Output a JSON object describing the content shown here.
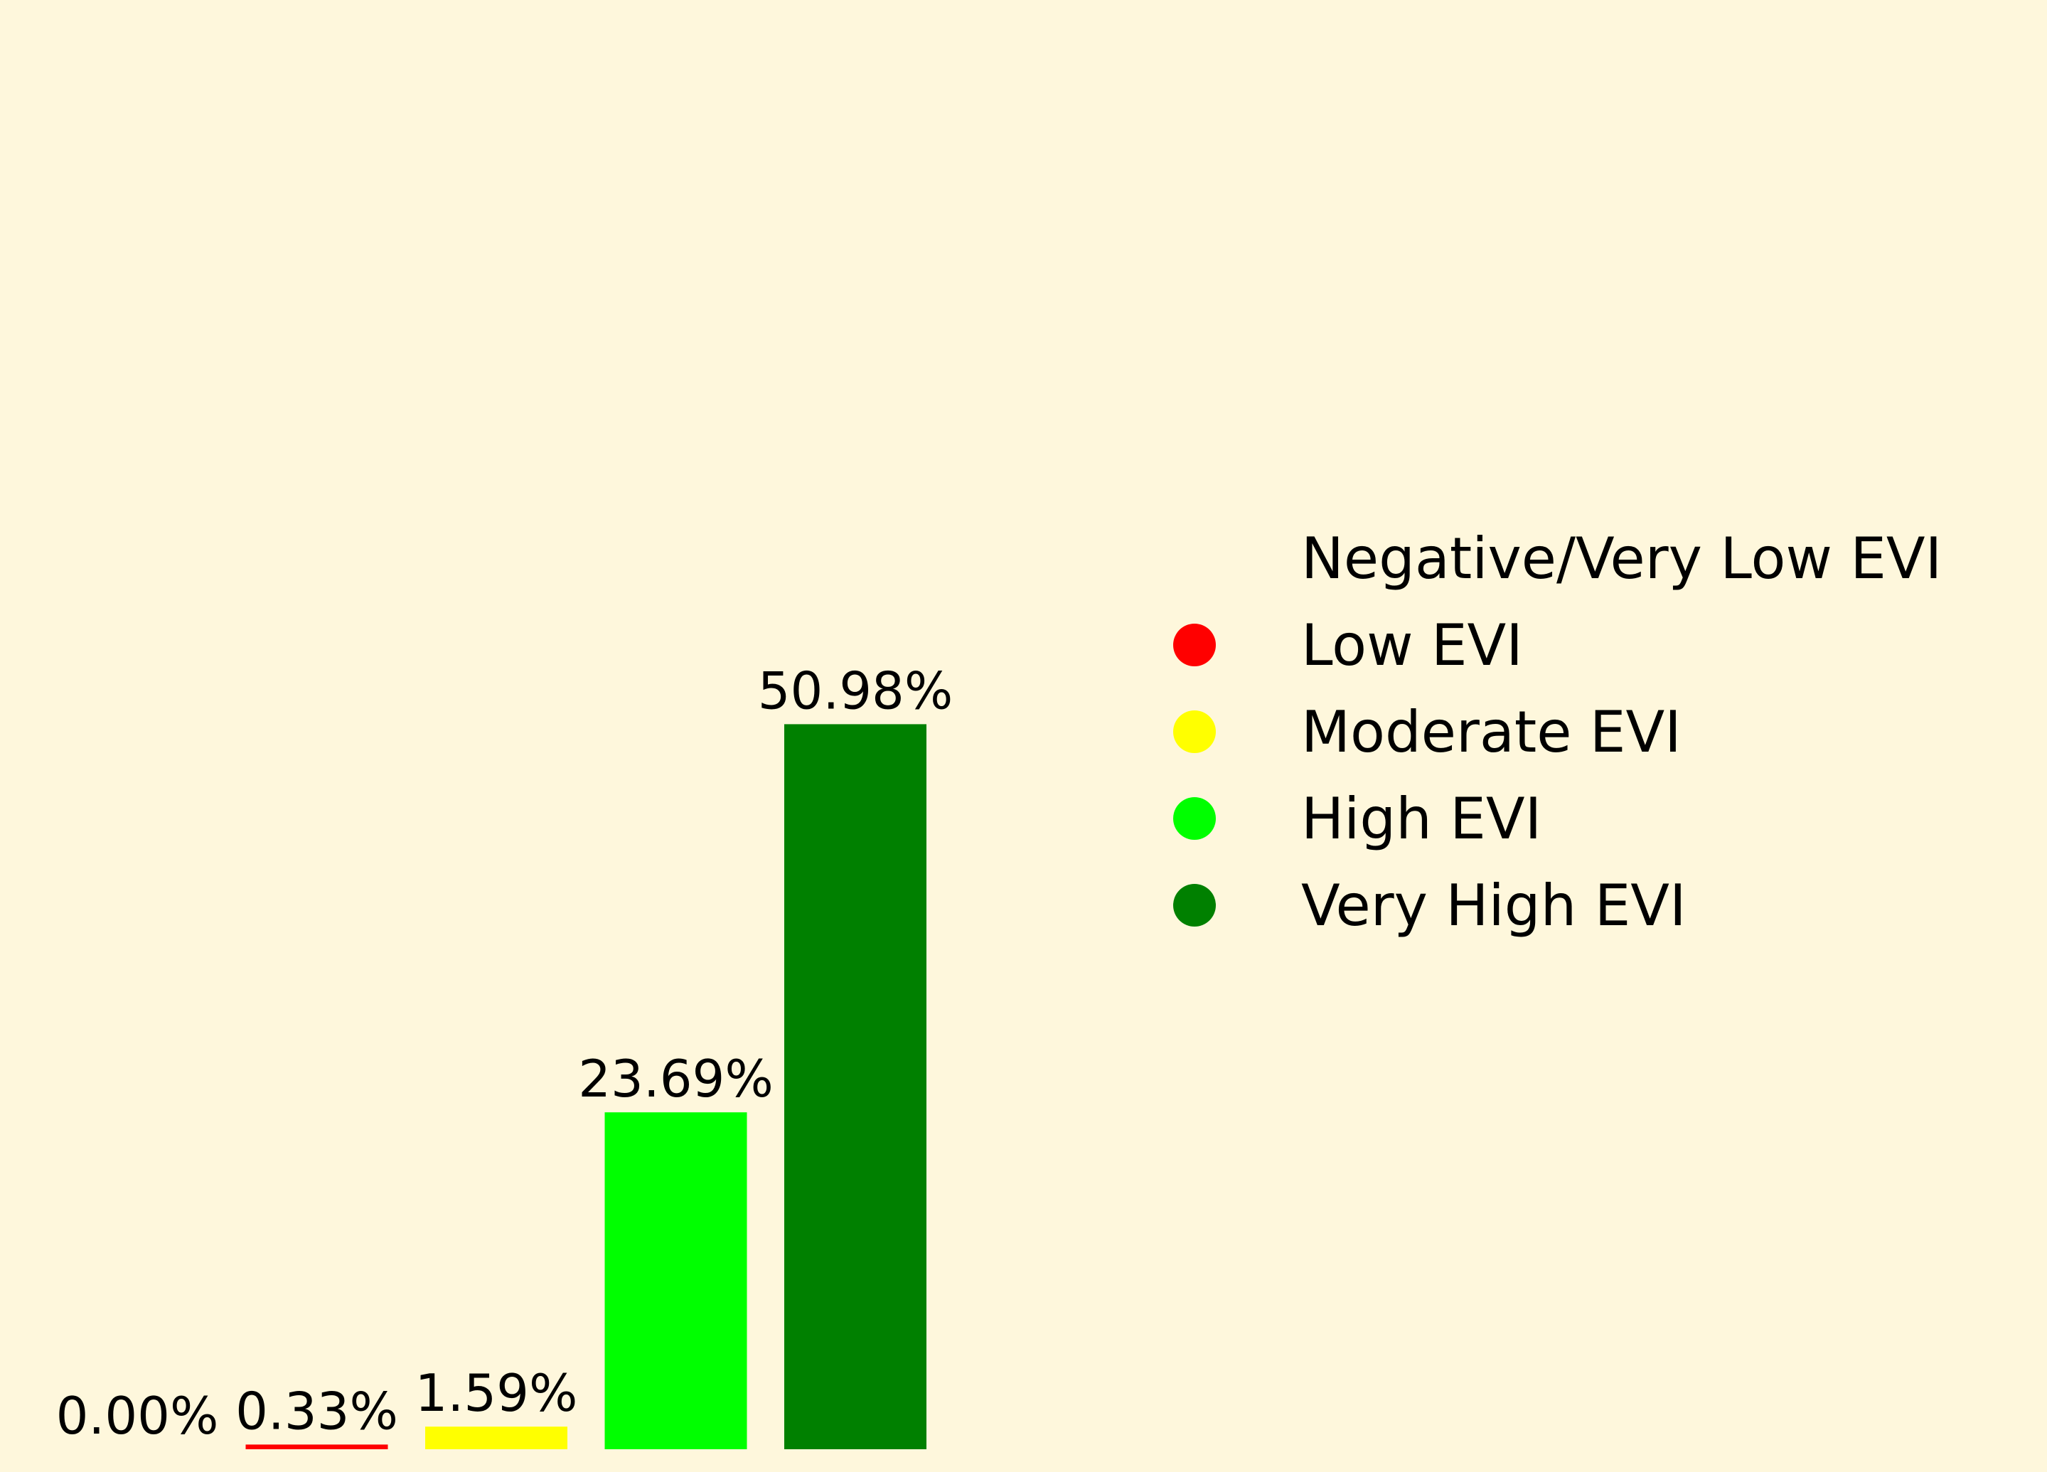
{
  "chart_data": {
    "type": "bar",
    "categories": [
      "Negative/Very Low EVI",
      "Low EVI",
      "Moderate EVI",
      "High EVI",
      "Very High EVI"
    ],
    "values": [
      0.0,
      0.33,
      1.59,
      23.69,
      50.98
    ],
    "value_labels": [
      "0.00%",
      "0.33%",
      "1.59%",
      "23.69%",
      "50.98%"
    ],
    "colors": [
      "#fef7dc",
      "#ff0000",
      "#ffff00",
      "#00ff00",
      "#008000"
    ],
    "title": "",
    "xlabel": "",
    "ylabel": "",
    "ylim": [
      0,
      55
    ],
    "grid": false,
    "axes_visible": false,
    "legend_placement": "right"
  }
}
